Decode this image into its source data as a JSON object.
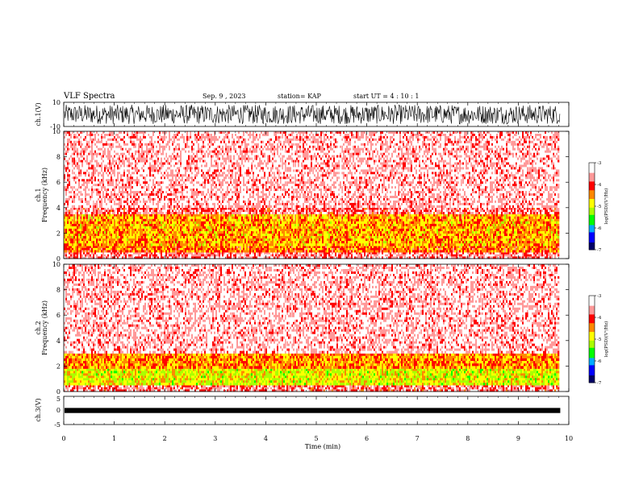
{
  "header": {
    "title": "VLF Spectra",
    "date": "Sep. 9 , 2023",
    "station": "station= KAP",
    "start": "start  UT =   4 : 10 : 1"
  },
  "chart_data": [
    {
      "type": "line",
      "panel": "ch1-waveform",
      "ylabel": "ch.1(V)",
      "ylim": [
        -10,
        10
      ],
      "yticks": [
        "10",
        "-10"
      ],
      "xlim": [
        0,
        10
      ],
      "data_extent_x": [
        0,
        9.83
      ],
      "color": "#000000",
      "description_values": "dense noise waveform oscillating roughly between -8 and +8 V"
    },
    {
      "type": "heatmap",
      "panel": "ch1-spectrogram",
      "ylabel": "ch.1\nFrequency  (kHz)",
      "ylim": [
        0,
        10
      ],
      "yticks": [
        "0",
        "2",
        "4",
        "6",
        "8",
        "10"
      ],
      "xlim": [
        0,
        10
      ],
      "data_extent_x": [
        0,
        9.83
      ],
      "bands": [
        {
          "f_low": 0.0,
          "f_high": 0.5,
          "level": -3.6
        },
        {
          "f_low": 0.5,
          "f_high": 1.0,
          "level": -4.3
        },
        {
          "f_low": 1.0,
          "f_high": 3.5,
          "level": -4.5
        },
        {
          "f_low": 3.5,
          "f_high": 4.0,
          "level": -3.7
        },
        {
          "f_low": 4.0,
          "f_high": 10.0,
          "level": -3.4
        }
      ]
    },
    {
      "type": "heatmap",
      "panel": "ch2-spectrogram",
      "ylabel": "ch.2\nFrequency  (kHz)",
      "ylim": [
        0,
        10
      ],
      "yticks": [
        "0",
        "2",
        "4",
        "6",
        "8",
        "10"
      ],
      "xlim": [
        0,
        10
      ],
      "data_extent_x": [
        0,
        9.83
      ],
      "bands": [
        {
          "f_low": 0.0,
          "f_high": 0.5,
          "level": -3.7
        },
        {
          "f_low": 0.5,
          "f_high": 1.8,
          "level": -4.9
        },
        {
          "f_low": 1.8,
          "f_high": 3.0,
          "level": -4.4
        },
        {
          "f_low": 3.0,
          "f_high": 10.0,
          "level": -3.4
        }
      ]
    },
    {
      "type": "line",
      "panel": "ch3-waveform",
      "ylabel": "ch.3(V)",
      "ylim": [
        -5,
        5
      ],
      "yticks": [
        "5",
        "0",
        "-5"
      ],
      "xlim": [
        0,
        10
      ],
      "data_extent_x": [
        0,
        9.83
      ],
      "value_band": [
        -0.9,
        0.9
      ],
      "color": "#000000"
    }
  ],
  "x_axis": {
    "label": "Time  (min)",
    "ticks": [
      "0",
      "1",
      "2",
      "3",
      "4",
      "5",
      "6",
      "7",
      "8",
      "9",
      "10"
    ]
  },
  "colorbar": {
    "label": "log(PSD)(V²/Hz)",
    "range": [
      -7,
      -3
    ],
    "ticks": [
      "-3",
      "-4",
      "-5",
      "-6",
      "-7"
    ],
    "colors": [
      "#000066",
      "#0000ff",
      "#00aaff",
      "#00ff00",
      "#aaff00",
      "#ffff00",
      "#ff8800",
      "#ff0000",
      "#ff9999",
      "#ffffff"
    ]
  }
}
